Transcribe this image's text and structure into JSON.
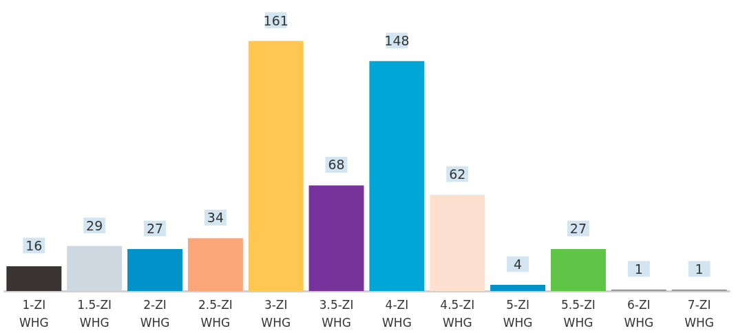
{
  "chart_data": {
    "type": "bar",
    "categories": [
      "1-ZI WHG",
      "1.5-ZI WHG",
      "2-ZI WHG",
      "2.5-ZI WHG",
      "3-ZI WHG",
      "3.5-ZI WHG",
      "4-ZI WHG",
      "4.5-ZI WHG",
      "5-ZI WHG",
      "5.5-ZI WHG",
      "6-ZI WHG",
      "7-ZI WHG"
    ],
    "values": [
      16,
      29,
      27,
      34,
      161,
      68,
      148,
      62,
      4,
      27,
      1,
      1
    ],
    "colors": [
      "#3a3434",
      "#cdd8e0",
      "#0092c8",
      "#fba67a",
      "#ffc750",
      "#77339b",
      "#00a6d6",
      "#fde0d0",
      "#0092c8",
      "#60c446",
      "#999999",
      "#999999"
    ],
    "data_labels": true,
    "grid": false
  }
}
